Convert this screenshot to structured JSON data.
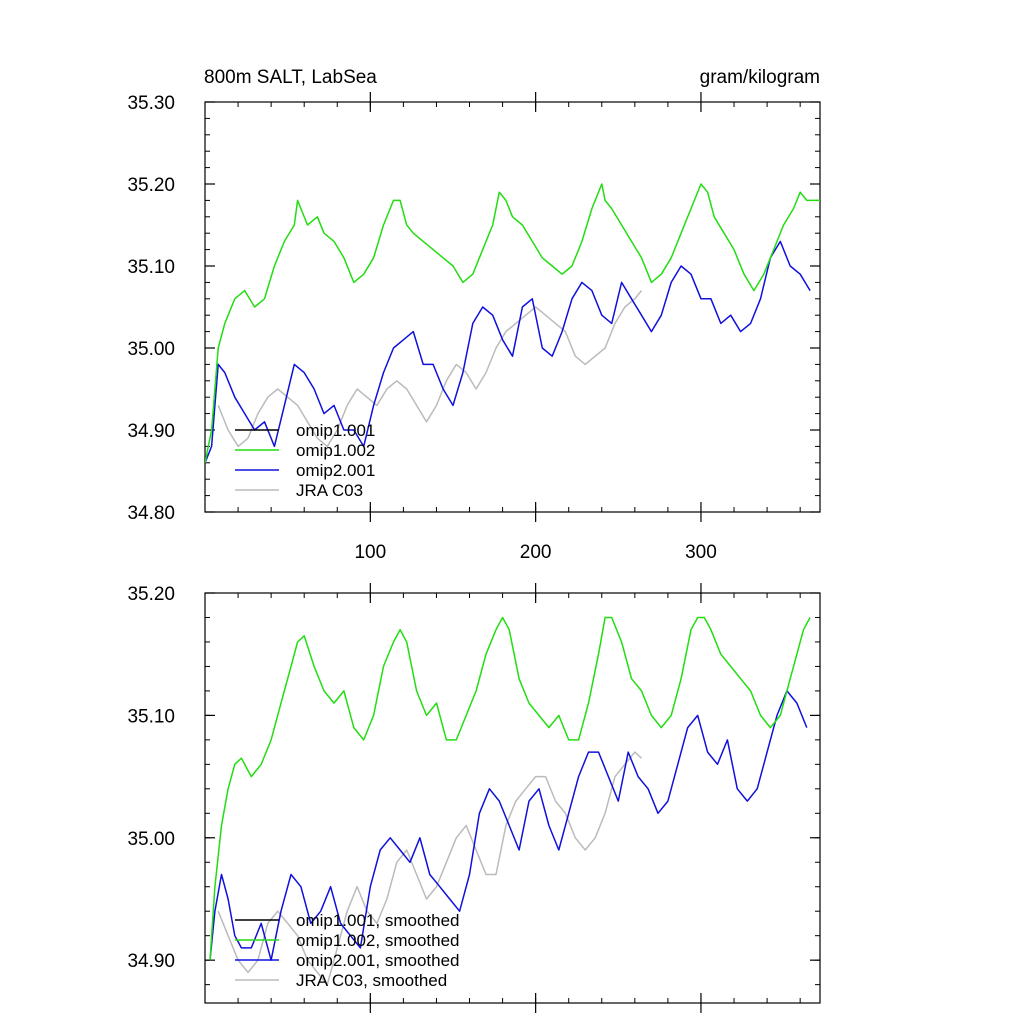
{
  "header": {
    "title": "800m SALT, LabSea",
    "units": "gram/kilogram"
  },
  "colors": {
    "omip1_001": "#000000",
    "omip1_002": "#22dd11",
    "omip2_001": "#1010dd",
    "jra_c03": "#bbbbbb"
  },
  "chart_data": [
    {
      "type": "line",
      "panel": "top",
      "title": "800m SALT, LabSea",
      "units": "gram/kilogram",
      "xlim": [
        0,
        372
      ],
      "ylim": [
        34.8,
        35.3
      ],
      "xticks": [
        100,
        200,
        300
      ],
      "xtick_labels": [
        "100",
        "200",
        "300"
      ],
      "yticks": [
        34.8,
        34.9,
        35.0,
        35.1,
        35.2,
        35.3
      ],
      "ytick_labels": [
        "34.80",
        "34.90",
        "35.00",
        "35.10",
        "35.20",
        "35.30"
      ],
      "legend": [
        "omip1.001",
        "omip1.002",
        "omip2.001",
        "JRA C03"
      ],
      "series": [
        {
          "name": "omip1.002",
          "color": "#22dd11",
          "x": [
            0,
            4,
            8,
            12,
            18,
            24,
            30,
            36,
            42,
            48,
            54,
            56,
            62,
            68,
            72,
            78,
            84,
            90,
            96,
            102,
            108,
            114,
            118,
            122,
            126,
            132,
            138,
            144,
            150,
            156,
            162,
            168,
            174,
            178,
            182,
            186,
            192,
            198,
            204,
            210,
            216,
            222,
            228,
            234,
            240,
            242,
            246,
            252,
            258,
            264,
            270,
            276,
            282,
            288,
            294,
            300,
            304,
            308,
            314,
            320,
            326,
            332,
            338,
            344,
            350,
            356,
            360,
            364,
            368,
            372
          ],
          "values": [
            34.86,
            34.9,
            35.0,
            35.03,
            35.06,
            35.07,
            35.05,
            35.06,
            35.1,
            35.13,
            35.15,
            35.18,
            35.15,
            35.16,
            35.14,
            35.13,
            35.11,
            35.08,
            35.09,
            35.11,
            35.15,
            35.18,
            35.18,
            35.15,
            35.14,
            35.13,
            35.12,
            35.11,
            35.1,
            35.08,
            35.09,
            35.12,
            35.15,
            35.19,
            35.18,
            35.16,
            35.15,
            35.13,
            35.11,
            35.1,
            35.09,
            35.1,
            35.13,
            35.17,
            35.2,
            35.18,
            35.17,
            35.15,
            35.13,
            35.11,
            35.08,
            35.09,
            35.11,
            35.14,
            35.17,
            35.2,
            35.19,
            35.16,
            35.14,
            35.12,
            35.09,
            35.07,
            35.09,
            35.12,
            35.15,
            35.17,
            35.19,
            35.18,
            35.18,
            35.18
          ]
        },
        {
          "name": "omip2.001",
          "color": "#1010dd",
          "x": [
            0,
            4,
            8,
            12,
            18,
            24,
            30,
            36,
            42,
            48,
            54,
            60,
            66,
            72,
            78,
            84,
            90,
            96,
            102,
            108,
            114,
            120,
            126,
            132,
            138,
            144,
            150,
            156,
            162,
            168,
            174,
            180,
            186,
            192,
            198,
            204,
            210,
            216,
            222,
            228,
            234,
            240,
            246,
            252,
            258,
            264,
            270,
            276,
            282,
            288,
            294,
            300,
            306,
            312,
            318,
            324,
            330,
            336,
            342,
            348,
            354,
            360,
            366
          ],
          "values": [
            34.86,
            34.88,
            34.98,
            34.97,
            34.94,
            34.92,
            34.9,
            34.91,
            34.88,
            34.93,
            34.98,
            34.97,
            34.95,
            34.92,
            34.93,
            34.9,
            34.9,
            34.88,
            34.93,
            34.97,
            35.0,
            35.01,
            35.02,
            34.98,
            34.98,
            34.95,
            34.93,
            34.97,
            35.03,
            35.05,
            35.04,
            35.01,
            34.99,
            35.05,
            35.06,
            35.0,
            34.99,
            35.02,
            35.06,
            35.08,
            35.07,
            35.04,
            35.03,
            35.08,
            35.06,
            35.04,
            35.02,
            35.04,
            35.08,
            35.1,
            35.09,
            35.06,
            35.06,
            35.03,
            35.04,
            35.02,
            35.03,
            35.06,
            35.11,
            35.13,
            35.1,
            35.09,
            35.07
          ]
        },
        {
          "name": "JRA C03",
          "color": "#bbbbbb",
          "x": [
            8,
            14,
            20,
            26,
            32,
            38,
            44,
            50,
            56,
            62,
            68,
            74,
            80,
            86,
            92,
            98,
            104,
            110,
            116,
            122,
            128,
            134,
            140,
            146,
            152,
            158,
            164,
            170,
            176,
            182,
            188,
            194,
            200,
            206,
            212,
            218,
            224,
            230,
            236,
            242,
            248,
            254,
            260,
            264
          ],
          "values": [
            34.93,
            34.9,
            34.88,
            34.89,
            34.92,
            34.94,
            34.95,
            34.94,
            34.93,
            34.91,
            34.89,
            34.88,
            34.9,
            34.93,
            34.95,
            34.94,
            34.93,
            34.95,
            34.96,
            34.95,
            34.93,
            34.91,
            34.93,
            34.96,
            34.98,
            34.97,
            34.95,
            34.97,
            35.0,
            35.02,
            35.03,
            35.04,
            35.05,
            35.04,
            35.03,
            35.02,
            34.99,
            34.98,
            34.99,
            35.0,
            35.03,
            35.05,
            35.06,
            35.07
          ]
        }
      ]
    },
    {
      "type": "line",
      "panel": "bottom",
      "xlim": [
        0,
        372
      ],
      "ylim": [
        34.865,
        35.2
      ],
      "xticks": [
        100,
        200,
        300
      ],
      "yticks": [
        34.9,
        35.0,
        35.1,
        35.2
      ],
      "ytick_labels": [
        "34.90",
        "35.00",
        "35.10",
        "35.20"
      ],
      "legend": [
        "omip1.001, smoothed",
        "omip1.002, smoothed",
        "omip2.001, smoothed",
        "JRA C03, smoothed"
      ],
      "series": [
        {
          "name": "omip1.002, smoothed",
          "color": "#22dd11",
          "x": [
            3,
            6,
            10,
            14,
            18,
            22,
            28,
            34,
            40,
            46,
            52,
            56,
            60,
            66,
            72,
            78,
            84,
            90,
            96,
            102,
            108,
            114,
            118,
            122,
            128,
            134,
            140,
            146,
            152,
            158,
            164,
            170,
            176,
            180,
            184,
            190,
            196,
            202,
            208,
            214,
            220,
            226,
            232,
            238,
            242,
            246,
            252,
            258,
            264,
            270,
            276,
            282,
            288,
            294,
            298,
            302,
            306,
            312,
            318,
            324,
            330,
            336,
            342,
            348,
            354,
            358,
            362,
            366
          ],
          "values": [
            34.9,
            34.96,
            35.01,
            35.04,
            35.06,
            35.065,
            35.05,
            35.06,
            35.08,
            35.11,
            35.14,
            35.16,
            35.165,
            35.14,
            35.12,
            35.11,
            35.12,
            35.09,
            35.08,
            35.1,
            35.14,
            35.16,
            35.17,
            35.16,
            35.12,
            35.1,
            35.11,
            35.08,
            35.08,
            35.1,
            35.12,
            35.15,
            35.17,
            35.18,
            35.17,
            35.13,
            35.11,
            35.1,
            35.09,
            35.1,
            35.08,
            35.08,
            35.11,
            35.15,
            35.18,
            35.18,
            35.16,
            35.13,
            35.12,
            35.1,
            35.09,
            35.1,
            35.13,
            35.17,
            35.18,
            35.18,
            35.17,
            35.15,
            35.14,
            35.13,
            35.12,
            35.1,
            35.09,
            35.1,
            35.13,
            35.15,
            35.17,
            35.18
          ]
        },
        {
          "name": "omip2.001, smoothed",
          "color": "#1010dd",
          "x": [
            3,
            6,
            10,
            14,
            18,
            22,
            28,
            34,
            40,
            46,
            52,
            58,
            64,
            70,
            76,
            82,
            88,
            94,
            100,
            106,
            112,
            118,
            124,
            130,
            136,
            142,
            148,
            154,
            160,
            166,
            172,
            178,
            184,
            190,
            196,
            202,
            208,
            214,
            220,
            226,
            232,
            238,
            244,
            250,
            256,
            262,
            268,
            274,
            280,
            286,
            292,
            298,
            304,
            310,
            316,
            322,
            328,
            334,
            340,
            346,
            352,
            358,
            364
          ],
          "values": [
            34.9,
            34.94,
            34.97,
            34.95,
            34.92,
            34.91,
            34.91,
            34.93,
            34.9,
            34.94,
            34.97,
            34.96,
            34.93,
            34.94,
            34.96,
            34.93,
            34.92,
            34.91,
            34.96,
            34.99,
            35.0,
            34.99,
            34.98,
            35.0,
            34.97,
            34.96,
            34.95,
            34.94,
            34.97,
            35.02,
            35.04,
            35.03,
            35.01,
            34.99,
            35.03,
            35.04,
            35.01,
            34.99,
            35.02,
            35.05,
            35.07,
            35.07,
            35.05,
            35.03,
            35.07,
            35.05,
            35.04,
            35.02,
            35.03,
            35.06,
            35.09,
            35.1,
            35.07,
            35.06,
            35.08,
            35.04,
            35.03,
            35.04,
            35.07,
            35.1,
            35.12,
            35.11,
            35.09
          ]
        },
        {
          "name": "JRA C03, smoothed",
          "color": "#bbbbbb",
          "x": [
            8,
            14,
            20,
            26,
            32,
            38,
            44,
            50,
            56,
            62,
            68,
            74,
            80,
            86,
            92,
            98,
            104,
            110,
            116,
            122,
            128,
            134,
            140,
            146,
            152,
            158,
            164,
            170,
            176,
            182,
            188,
            194,
            200,
            206,
            212,
            218,
            224,
            230,
            236,
            242,
            248,
            254,
            260,
            264
          ],
          "values": [
            34.94,
            34.92,
            34.9,
            34.89,
            34.9,
            34.93,
            34.94,
            34.93,
            34.92,
            34.9,
            34.89,
            34.88,
            34.91,
            34.94,
            34.96,
            34.94,
            34.93,
            34.95,
            34.98,
            34.99,
            34.97,
            34.95,
            34.96,
            34.98,
            35.0,
            35.01,
            34.99,
            34.97,
            34.97,
            35.01,
            35.03,
            35.04,
            35.05,
            35.05,
            35.03,
            35.02,
            35.0,
            34.99,
            35.0,
            35.02,
            35.05,
            35.06,
            35.07,
            35.065
          ]
        }
      ]
    }
  ]
}
